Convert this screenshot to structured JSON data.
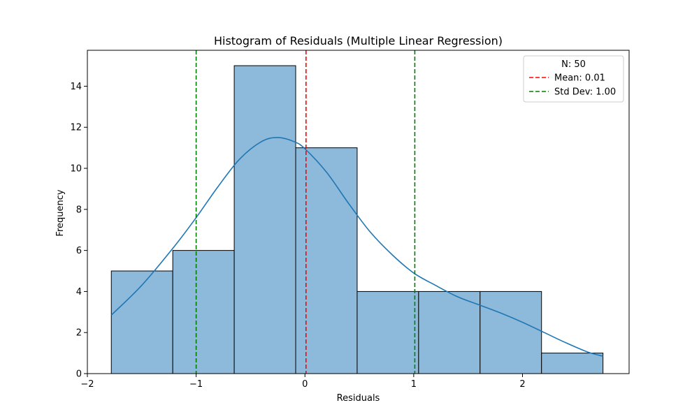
{
  "chart_data": {
    "type": "bar",
    "title": "Histogram of Residuals (Multiple Linear Regression)",
    "xlabel": "Residuals",
    "ylabel": "Frequency",
    "xlim": [
      -2.0,
      2.98
    ],
    "ylim": [
      0,
      15.75
    ],
    "xticks": [
      -2,
      -1,
      0,
      1,
      2
    ],
    "xtick_labels": [
      "−2",
      "−1",
      "0",
      "1",
      "2"
    ],
    "yticks": [
      0,
      2,
      4,
      6,
      8,
      10,
      12,
      14
    ],
    "ytick_labels": [
      "0",
      "2",
      "4",
      "6",
      "8",
      "10",
      "12",
      "14"
    ],
    "grid": false,
    "bins": [
      {
        "x0": -1.78,
        "x1": -1.215,
        "count": 5
      },
      {
        "x0": -1.215,
        "x1": -0.65,
        "count": 6
      },
      {
        "x0": -0.65,
        "x1": -0.085,
        "count": 15
      },
      {
        "x0": -0.085,
        "x1": 0.48,
        "count": 11
      },
      {
        "x0": 0.48,
        "x1": 1.045,
        "count": 4
      },
      {
        "x0": 1.045,
        "x1": 1.61,
        "count": 4
      },
      {
        "x0": 1.61,
        "x1": 2.175,
        "count": 4
      },
      {
        "x0": 2.175,
        "x1": 2.74,
        "count": 1
      }
    ],
    "kde": {
      "x": [
        -1.78,
        -1.5,
        -1.2,
        -1.0,
        -0.8,
        -0.6,
        -0.4,
        -0.25,
        -0.1,
        0.0,
        0.2,
        0.4,
        0.6,
        0.8,
        1.0,
        1.2,
        1.4,
        1.6,
        1.8,
        2.0,
        2.2,
        2.4,
        2.6,
        2.74
      ],
      "y": [
        2.85,
        4.3,
        6.2,
        7.6,
        9.1,
        10.45,
        11.3,
        11.5,
        11.3,
        10.95,
        9.8,
        8.3,
        6.9,
        5.8,
        4.9,
        4.3,
        3.75,
        3.35,
        2.95,
        2.5,
        2.0,
        1.5,
        1.05,
        0.85
      ]
    },
    "vlines": [
      {
        "label": "Mean: 0.01",
        "x": 0.01,
        "color": "#ff0000",
        "style": "dashed"
      },
      {
        "label": "Std Dev: 1.00",
        "x": -1.0,
        "color": "#008000",
        "style": "dashed"
      },
      {
        "label": "",
        "x": 1.01,
        "color": "#008000",
        "style": "dashed"
      }
    ],
    "legend": {
      "title": "N: 50",
      "placement": "top-right",
      "entries": [
        {
          "label": "Mean: 0.01",
          "color": "#ff0000"
        },
        {
          "label": "Std Dev: 1.00",
          "color": "#008000"
        }
      ]
    },
    "colors": {
      "bar_fill": "#8db9da",
      "bar_edge": "#000000",
      "kde_line": "#1f77b4"
    }
  }
}
